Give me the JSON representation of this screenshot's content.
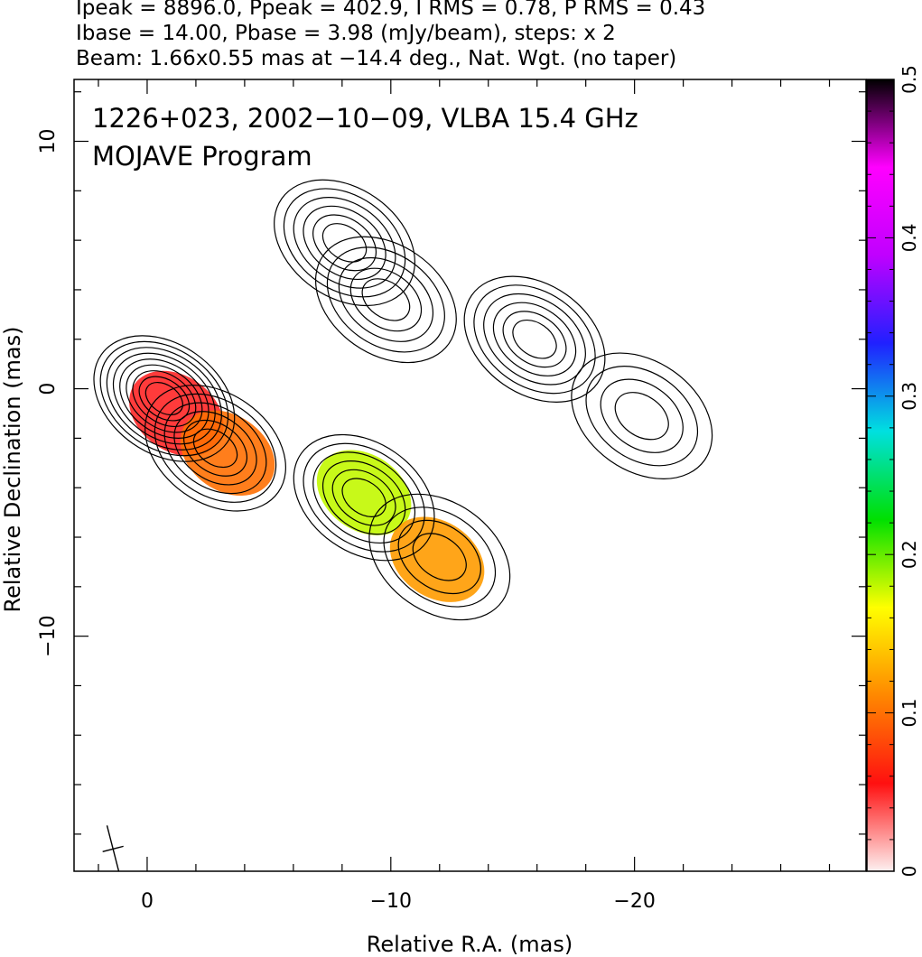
{
  "header": {
    "line1": "Ipeak = 8896.0, Ppeak = 402.9, I RMS = 0.78, P RMS = 0.43",
    "line2": "Ibase = 14.00, Pbase = 3.98 (mJy/beam), steps: x 2",
    "line3": "Beam: 1.66x0.55 mas at −14.4 deg., Nat. Wgt. (no taper)"
  },
  "chart_data": {
    "type": "contour",
    "title": "1226+023, 2002−10−09, VLBA 15.4 GHz",
    "subtitle": "MOJAVE Program",
    "xlabel": "Relative R.A. (mas)",
    "ylabel": "Relative Declination (mas)",
    "xlim": [
      3,
      -29.5
    ],
    "ylim": [
      -19.5,
      12.5
    ],
    "x_ticks": [
      0,
      -10,
      -20
    ],
    "x_tick_labels": [
      "0",
      "−10",
      "−20"
    ],
    "y_ticks": [
      10,
      0,
      -10
    ],
    "y_tick_labels": [
      "10",
      "0",
      "−10"
    ],
    "colorbar": {
      "ticks": [
        0,
        0.1,
        0.2,
        0.3,
        0.4,
        0.5
      ],
      "tick_labels": [
        "0",
        "0.1",
        "0.2",
        "0.3",
        "0.4",
        "0.5"
      ],
      "range": [
        0,
        0.5
      ],
      "colors": [
        "#fdf0f0",
        "#ff1010",
        "#ff8800",
        "#ffff00",
        "#00e000",
        "#00e0e0",
        "#2020ff",
        "#c000ff",
        "#ff00ff",
        "#000000"
      ]
    },
    "beam": {
      "major_mas": 1.66,
      "minor_mas": 0.55,
      "pa_deg": -14.4
    },
    "total_intensity_components": [
      {
        "x": -0.7,
        "y": -0.4,
        "levels": 9
      },
      {
        "x": -2.8,
        "y": -2.4,
        "levels": 6
      },
      {
        "x": -8.1,
        "y": 5.9,
        "levels": 6
      },
      {
        "x": -9.8,
        "y": 3.6,
        "levels": 5
      },
      {
        "x": -8.9,
        "y": -4.4,
        "levels": 6
      },
      {
        "x": -12.0,
        "y": -6.8,
        "levels": 4
      },
      {
        "x": -15.9,
        "y": 2.0,
        "levels": 6
      },
      {
        "x": -20.3,
        "y": -1.1,
        "levels": 4
      }
    ],
    "fractional_polarization_regions": [
      {
        "x": -1.2,
        "y": -1.0,
        "value": 0.05
      },
      {
        "x": -3.3,
        "y": -2.6,
        "value": 0.1
      },
      {
        "x": -8.9,
        "y": -4.2,
        "value": 0.18
      },
      {
        "x": -11.9,
        "y": -6.9,
        "value": 0.12
      }
    ]
  }
}
